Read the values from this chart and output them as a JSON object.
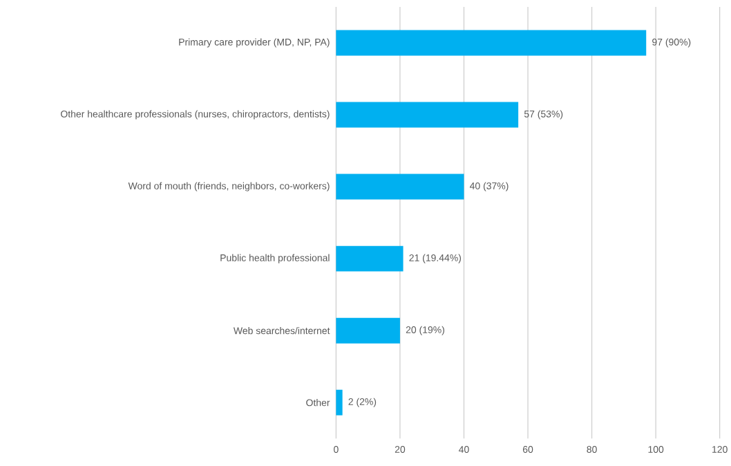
{
  "chart_data": {
    "type": "bar",
    "orientation": "horizontal",
    "categories": [
      "Primary care provider (MD, NP, PA)",
      "Other healthcare professionals (nurses, chiropractors, dentists)",
      "Word of mouth (friends, neighbors, co-workers)",
      "Public health professional",
      "Web searches/internet",
      "Other"
    ],
    "values": [
      97,
      57,
      40,
      21,
      20,
      2
    ],
    "value_labels": [
      "97 (90%)",
      "57 (53%)",
      "40 (37%)",
      "21 (19.44%)",
      "20 (19%)",
      "2 (2%)"
    ],
    "color": "#00b0f0",
    "xlim": [
      0,
      120
    ],
    "xticks": [
      0,
      20,
      40,
      60,
      80,
      100,
      120
    ],
    "grid": "x"
  }
}
